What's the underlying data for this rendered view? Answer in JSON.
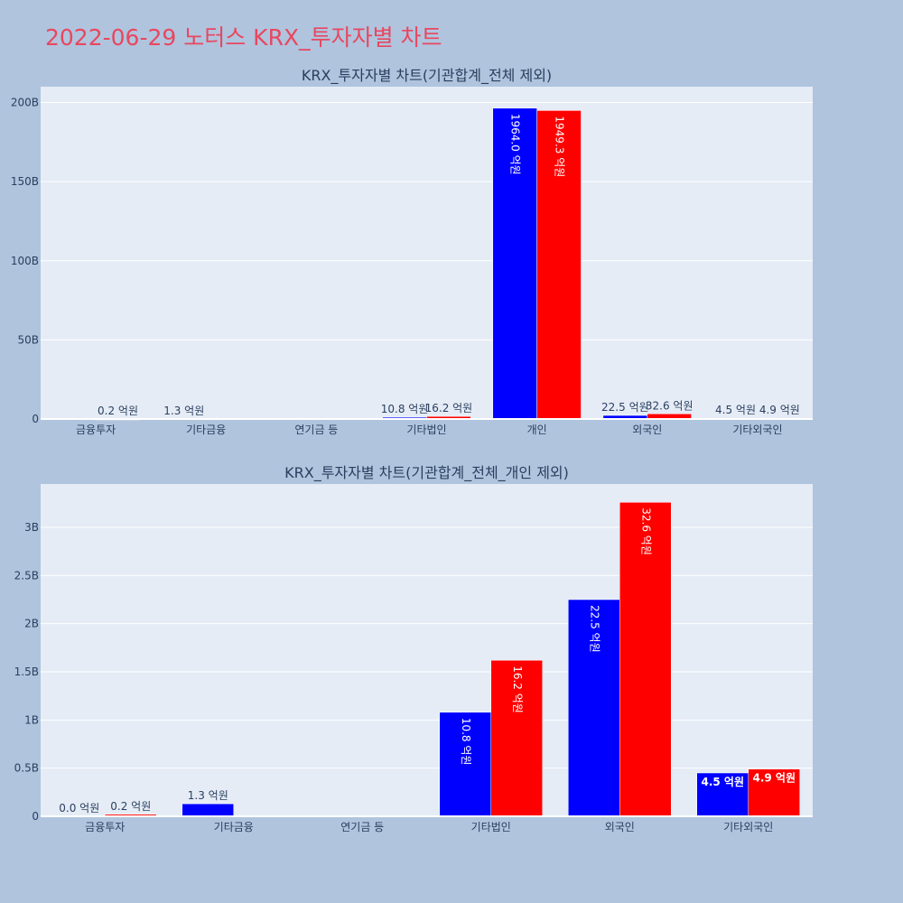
{
  "title": "2022-06-29 노터스 KRX_투자자별 차트",
  "colors": {
    "page_bg": "#b0c4de",
    "plot_bg": "#e5ecf6",
    "title": "#e8475f",
    "series_a": "#0000ff",
    "series_b": "#ff0000",
    "text": "#2a3f5f"
  },
  "chart_data": [
    {
      "type": "bar",
      "title": "KRX_투자자별 차트(기관합계_전체 제외)",
      "categories": [
        "금융투자",
        "기타금융",
        "연기금 등",
        "기타법인",
        "개인",
        "외국인",
        "기타외국인"
      ],
      "ylim": [
        0,
        210
      ],
      "yticks": [
        0,
        50,
        100,
        150,
        200
      ],
      "ytick_labels": [
        "0",
        "50B",
        "100B",
        "150B",
        "200B"
      ],
      "grid": true,
      "series": [
        {
          "color": "#0000ff",
          "values": [
            0.0,
            0.13,
            0,
            1.08,
            196.4,
            2.25,
            0.45
          ],
          "labels": [
            "",
            "1.3 억원",
            "",
            "10.8 억원",
            "1964.0 억원",
            "22.5 억원",
            "4.5 억원"
          ]
        },
        {
          "color": "#ff0000",
          "values": [
            0.02,
            0,
            0,
            1.62,
            194.93,
            3.26,
            0.49
          ],
          "labels": [
            "0.2 억원",
            "",
            "",
            "16.2 억원",
            "1949.3 억원",
            "32.6 억원",
            "4.9 억원"
          ]
        }
      ]
    },
    {
      "type": "bar",
      "title": "KRX_투자자별 차트(기관합계_전체_개인 제외)",
      "categories": [
        "금융투자",
        "기타금융",
        "연기금 등",
        "기타법인",
        "외국인",
        "기타외국인"
      ],
      "ylim": [
        0,
        3.45
      ],
      "yticks": [
        0,
        0.5,
        1,
        1.5,
        2,
        2.5,
        3
      ],
      "ytick_labels": [
        "0",
        "0.5B",
        "1B",
        "1.5B",
        "2B",
        "2.5B",
        "3B"
      ],
      "grid": true,
      "series": [
        {
          "color": "#0000ff",
          "values": [
            0.0,
            0.13,
            0,
            1.08,
            2.25,
            0.45
          ],
          "labels": [
            "0.0 억원",
            "1.3 억원",
            "",
            "10.8 억원",
            "22.5 억원",
            "4.5 억원"
          ]
        },
        {
          "color": "#ff0000",
          "values": [
            0.02,
            0,
            0,
            1.62,
            3.26,
            0.49
          ],
          "labels": [
            "0.2 억원",
            "",
            "",
            "16.2 억원",
            "32.6 억원",
            "4.9 억원"
          ]
        }
      ]
    }
  ]
}
